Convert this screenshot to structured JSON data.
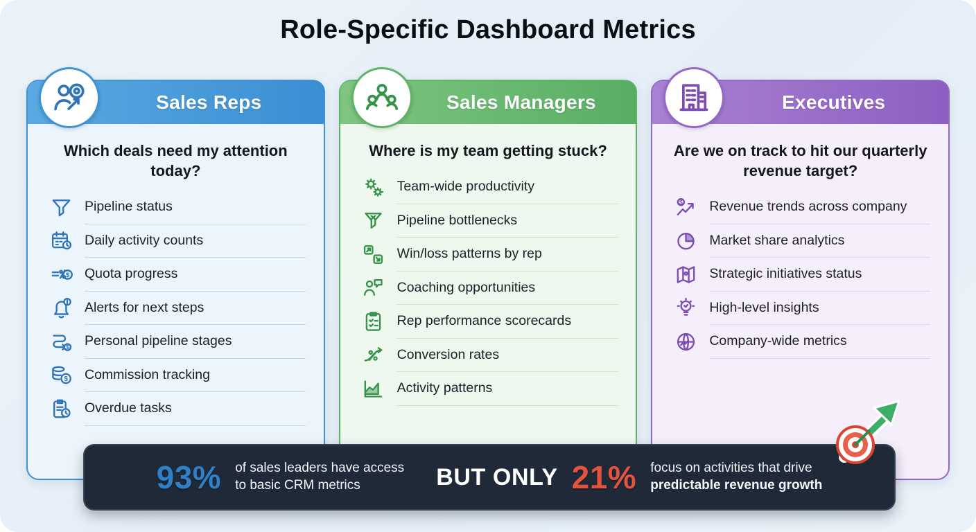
{
  "title": "Role-Specific Dashboard Metrics",
  "columns": [
    {
      "name": "Sales Reps",
      "badge_icon": "sales-rep-target-icon",
      "question": "Which deals need my attention today?",
      "items": [
        {
          "icon": "funnel-icon",
          "label": "Pipeline status"
        },
        {
          "icon": "calendar-icon",
          "label": "Daily activity counts"
        },
        {
          "icon": "quota-icon",
          "label": "Quota progress"
        },
        {
          "icon": "alert-bell-icon",
          "label": "Alerts for next steps"
        },
        {
          "icon": "pipeline-stages-icon",
          "label": "Personal pipeline stages"
        },
        {
          "icon": "coins-icon",
          "label": "Commission tracking"
        },
        {
          "icon": "overdue-task-icon",
          "label": "Overdue tasks"
        }
      ],
      "colors": {
        "header_from": "#5BA9E2",
        "header_to": "#3A8ED2",
        "border": "#3F93D6",
        "body_bg": "#EDF5FC",
        "icon": "#2F74B8",
        "divider": "#C7D8E8"
      }
    },
    {
      "name": "Sales Managers",
      "badge_icon": "team-icon",
      "question": "Where is my team getting stuck?",
      "items": [
        {
          "icon": "gears-icon",
          "label": "Team-wide productivity"
        },
        {
          "icon": "bottleneck-funnel-icon",
          "label": "Pipeline bottlenecks"
        },
        {
          "icon": "win-loss-icon",
          "label": "Win/loss patterns by rep"
        },
        {
          "icon": "coaching-icon",
          "label": "Coaching opportunities"
        },
        {
          "icon": "scorecard-icon",
          "label": "Rep performance scorecards"
        },
        {
          "icon": "conversion-icon",
          "label": "Conversion rates"
        },
        {
          "icon": "activity-chart-icon",
          "label": "Activity patterns"
        }
      ],
      "colors": {
        "header_from": "#7FC580",
        "header_to": "#58AE63",
        "border": "#5FB369",
        "body_bg": "#EEF8EF",
        "icon": "#35934A",
        "divider": "#CBE5CD"
      }
    },
    {
      "name": "Executives",
      "badge_icon": "building-icon",
      "question": "Are we on track to hit our quarterly revenue target?",
      "items": [
        {
          "icon": "revenue-trend-icon",
          "label": "Revenue trends across company"
        },
        {
          "icon": "pie-chart-icon",
          "label": "Market share analytics"
        },
        {
          "icon": "strategy-map-icon",
          "label": "Strategic initiatives status"
        },
        {
          "icon": "insight-bulb-icon",
          "label": "High-level insights"
        },
        {
          "icon": "globe-icon",
          "label": "Company-wide metrics"
        }
      ],
      "colors": {
        "header_from": "#A981D3",
        "header_to": "#8C5FC2",
        "border": "#9468C6",
        "body_bg": "#F5EFFB",
        "icon": "#7B4DB3",
        "divider": "#E0D2EE"
      }
    }
  ],
  "footer": {
    "stat1_value": "93%",
    "stat1_line1": "of sales leaders have access",
    "stat1_line2": "to basic CRM metrics",
    "connector": "BUT ONLY",
    "stat2_value": "21%",
    "stat2_line1": "focus on activities that drive",
    "stat2_line2": "predictable revenue growth",
    "colors": {
      "bg": "#1F2937",
      "stat1": "#2F80C7",
      "stat2": "#E2543E"
    }
  }
}
